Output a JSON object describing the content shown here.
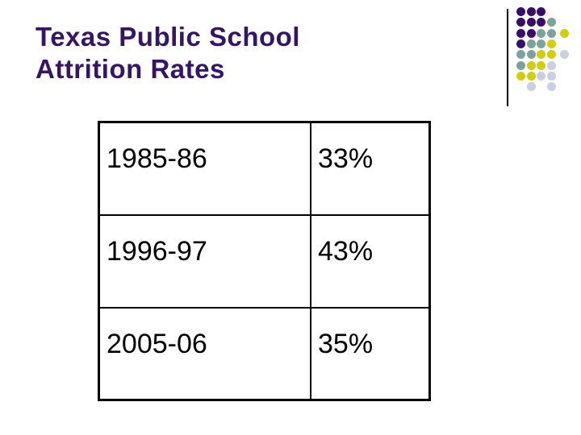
{
  "slide": {
    "title": {
      "line1": "Texas Public School",
      "line2": "Attrition Rates",
      "color": "#351566"
    }
  },
  "table": {
    "rows": [
      {
        "year": "1985-86",
        "rate": "33%"
      },
      {
        "year": "1996-97",
        "rate": "43%"
      },
      {
        "year": "2005-06",
        "rate": "35%"
      }
    ]
  },
  "decoration": {
    "divider_line_color": "#000000",
    "dot_colors": {
      "purple": "#380D68",
      "teal": "#7CA29D",
      "yellow": "#D2CD0F",
      "lavender": "#CCCEE2"
    },
    "dot_grid": [
      [
        "purple",
        "purple",
        "purple",
        null,
        null
      ],
      [
        "purple",
        "purple",
        "purple",
        "teal",
        null
      ],
      [
        "purple",
        "purple",
        "teal",
        "teal",
        "yellow"
      ],
      [
        "purple",
        "teal",
        "teal",
        "yellow",
        null
      ],
      [
        "teal",
        "teal",
        "yellow",
        "yellow",
        "lavender"
      ],
      [
        "teal",
        "yellow",
        "yellow",
        "lavender",
        null
      ],
      [
        "yellow",
        "yellow",
        "lavender",
        "lavender",
        null
      ],
      [
        null,
        "lavender",
        null,
        "lavender",
        null
      ]
    ]
  }
}
